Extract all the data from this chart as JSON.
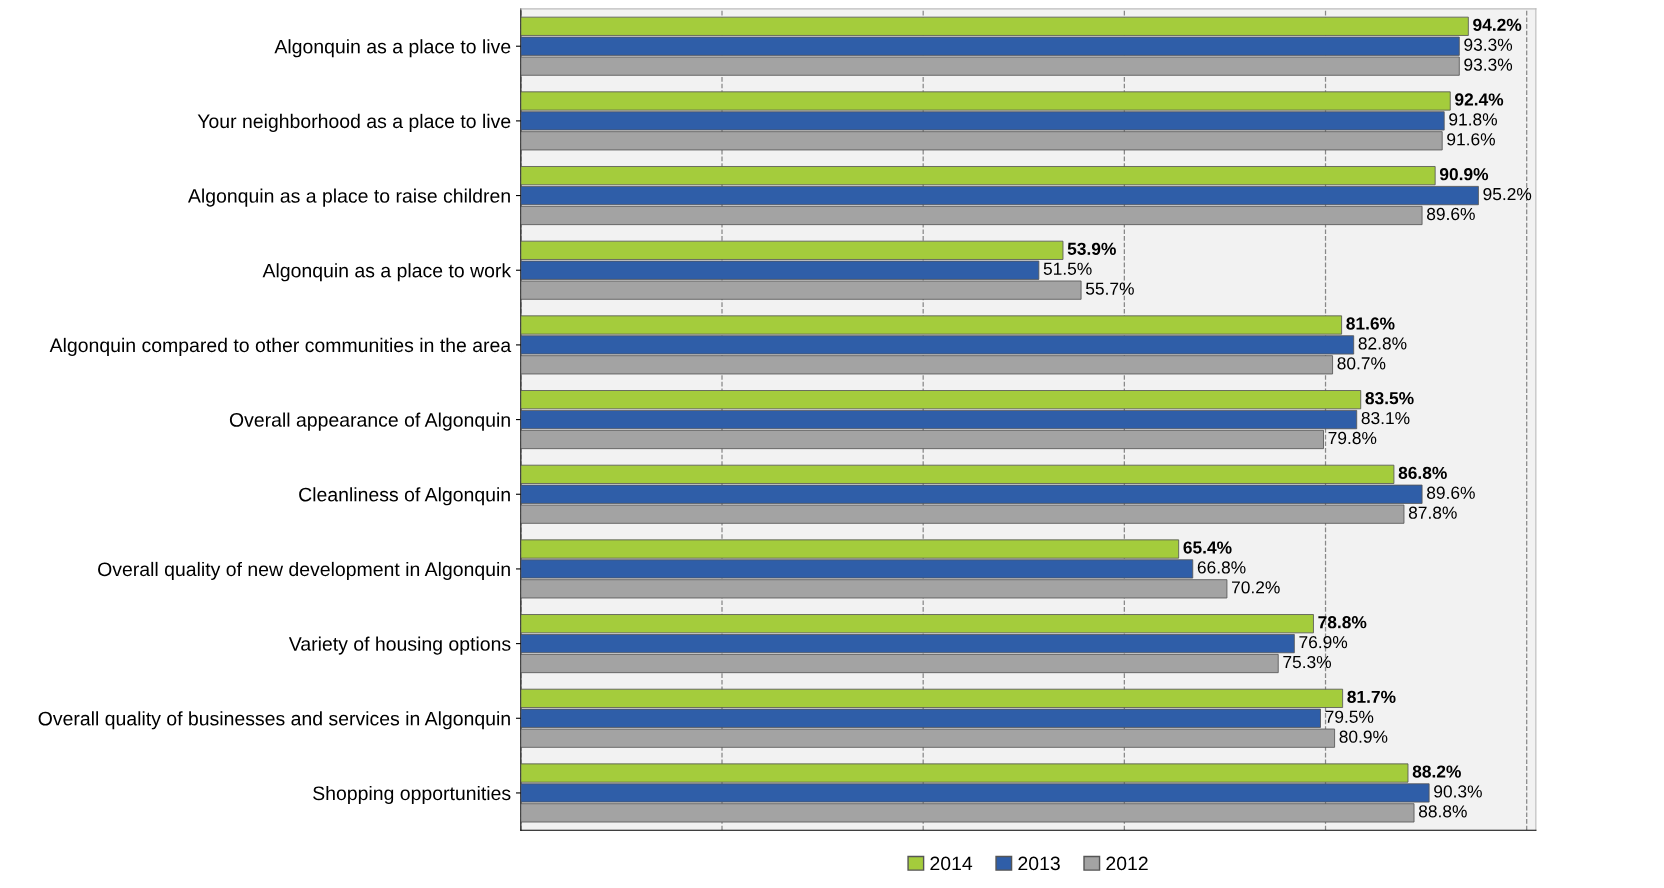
{
  "chart_data": {
    "type": "bar",
    "orientation": "horizontal",
    "categories": [
      "Algonquin as a place to live",
      "Your neighborhood as a place to live",
      "Algonquin as a place to raise children",
      "Algonquin as a place to work",
      "Algonquin compared to other communities in the area",
      "Overall appearance of Algonquin",
      "Cleanliness of Algonquin",
      "Overall quality of new development in Algonquin",
      "Variety of housing options",
      "Overall quality of businesses and services in Algonquin",
      "Shopping opportunities"
    ],
    "series": [
      {
        "name": "2014",
        "color": "#a4cc3c",
        "values": [
          94.2,
          92.4,
          90.9,
          53.9,
          81.6,
          83.5,
          86.8,
          65.4,
          78.8,
          81.7,
          88.2
        ],
        "value_labels": [
          "94.2%",
          "92.4%",
          "90.9%",
          "53.9%",
          "81.6%",
          "83.5%",
          "86.8%",
          "65.4%",
          "78.8%",
          "81.7%",
          "88.2%"
        ]
      },
      {
        "name": "2013",
        "color": "#2f5ea8",
        "values": [
          93.3,
          91.8,
          95.2,
          51.5,
          82.8,
          83.1,
          89.6,
          66.8,
          76.9,
          79.5,
          90.3
        ],
        "value_labels": [
          "93.3%",
          "91.8%",
          "95.2%",
          "51.5%",
          "82.8%",
          "83.1%",
          "89.6%",
          "66.8%",
          "76.9%",
          "79.5%",
          "90.3%"
        ]
      },
      {
        "name": "2012",
        "color": "#a3a3a3",
        "values": [
          93.3,
          91.6,
          89.6,
          55.7,
          80.7,
          79.8,
          87.8,
          70.2,
          75.3,
          80.9,
          88.8
        ],
        "value_labels": [
          "93.3%",
          "91.6%",
          "89.6%",
          "55.7%",
          "80.7%",
          "79.8%",
          "87.8%",
          "70.2%",
          "75.3%",
          "80.9%",
          "88.8%"
        ]
      }
    ],
    "tick_labels": "y",
    "grid": "x",
    "legend": "bottom"
  }
}
